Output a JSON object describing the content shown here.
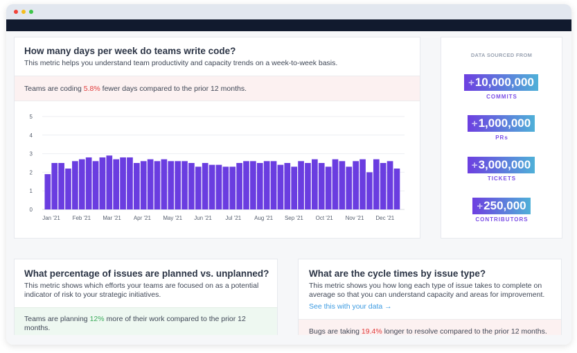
{
  "window": {
    "controls": [
      "close",
      "minimize",
      "maximize"
    ]
  },
  "main_card": {
    "title": "How many days per week do teams write code?",
    "description": "This metric helps you understand team productivity and capacity trends on a week-to-week basis.",
    "insight_prefix": "Teams are coding ",
    "insight_value": "5.8%",
    "insight_suffix": " fewer days compared to the prior 12 months."
  },
  "chart_data": {
    "type": "bar",
    "title": "",
    "xlabel": "",
    "ylabel": "",
    "ylim": [
      0,
      5
    ],
    "yticks": [
      "0",
      "1",
      "2",
      "3",
      "4",
      "5"
    ],
    "xtick_labels": [
      "Jan '21",
      "Feb '21",
      "Mar '21",
      "Apr '21",
      "May '21",
      "Jun '21",
      "Jul '21",
      "Aug '21",
      "Sep '21",
      "Oct '21",
      "Nov '21",
      "Dec '21"
    ],
    "grid": true,
    "color": "#6a3de0",
    "values": [
      1.9,
      2.5,
      2.5,
      2.2,
      2.6,
      2.7,
      2.8,
      2.6,
      2.8,
      2.9,
      2.7,
      2.8,
      2.8,
      2.5,
      2.6,
      2.7,
      2.6,
      2.7,
      2.6,
      2.6,
      2.6,
      2.5,
      2.3,
      2.5,
      2.4,
      2.4,
      2.3,
      2.3,
      2.5,
      2.6,
      2.6,
      2.5,
      2.6,
      2.6,
      2.4,
      2.5,
      2.3,
      2.6,
      2.5,
      2.7,
      2.5,
      2.3,
      2.7,
      2.6,
      2.3,
      2.6,
      2.7,
      2.0,
      2.7,
      2.5,
      2.6,
      2.2
    ]
  },
  "sources": {
    "heading": "DATA SOURCED FROM",
    "items": [
      {
        "value": "10,000,000",
        "label": "COMMITS"
      },
      {
        "value": "1,000,000",
        "label": "PRs"
      },
      {
        "value": "3,000,000",
        "label": "TICKETS"
      },
      {
        "value": "250,000",
        "label": "CONTRIBUTORS"
      }
    ],
    "plus": "+"
  },
  "planned_card": {
    "title": "What percentage of issues are planned vs. unplanned?",
    "description": "This metric shows which efforts your teams are focused on as a potential indicator of risk to your strategic initiatives.",
    "insight_prefix": "Teams are planning ",
    "insight_value": "12%",
    "insight_suffix": " more of their work compared to the prior 12 months."
  },
  "cycle_card": {
    "title": "What are the cycle times by issue type?",
    "description": "This metric shows you how long each type of issue takes to complete on average so that you can understand capacity and areas for improvement.",
    "link": "See this with your data →",
    "insight_prefix": "Bugs are taking ",
    "insight_value": "19.4%",
    "insight_suffix": " longer to resolve compared to the prior 12 months."
  },
  "colors": {
    "accent": "#6a3de0",
    "negative": "#e03a3a",
    "positive": "#3bab5a",
    "link": "#3b9ae1",
    "navbar": "#111a2e"
  }
}
